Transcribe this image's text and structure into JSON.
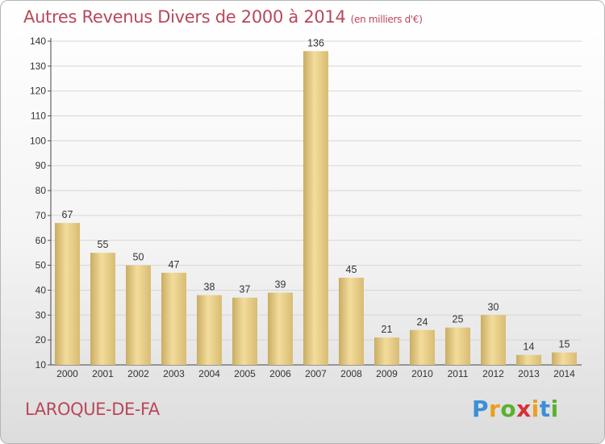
{
  "title": "Autres Revenus Divers de 2000 à 2014",
  "subtitle": "(en milliers d'€)",
  "place": "LAROQUE-DE-FA",
  "logo": {
    "letters": [
      "P",
      "r",
      "o",
      "x",
      "i",
      "t",
      "i"
    ],
    "colors": [
      "#3a8fd8",
      "#e8a020",
      "#5bb030",
      "#d8303a",
      "#e8a020",
      "#3a8fd8",
      "#5bb030"
    ]
  },
  "chart_data": {
    "type": "bar",
    "title": "Autres Revenus Divers de 2000 à 2014",
    "subtitle": "(en milliers d'€)",
    "xlabel": "",
    "ylabel": "",
    "categories": [
      "2000",
      "2001",
      "2002",
      "2003",
      "2004",
      "2005",
      "2006",
      "2007",
      "2008",
      "2009",
      "2010",
      "2011",
      "2012",
      "2013",
      "2014"
    ],
    "values": [
      67,
      55,
      50,
      47,
      38,
      37,
      39,
      136,
      45,
      21,
      24,
      25,
      30,
      14,
      15
    ],
    "ylim": [
      10,
      140
    ],
    "yticks": [
      10,
      20,
      30,
      40,
      50,
      60,
      70,
      80,
      90,
      100,
      110,
      120,
      130,
      140
    ],
    "grid": true,
    "bar_color": "#e8cf8a"
  }
}
